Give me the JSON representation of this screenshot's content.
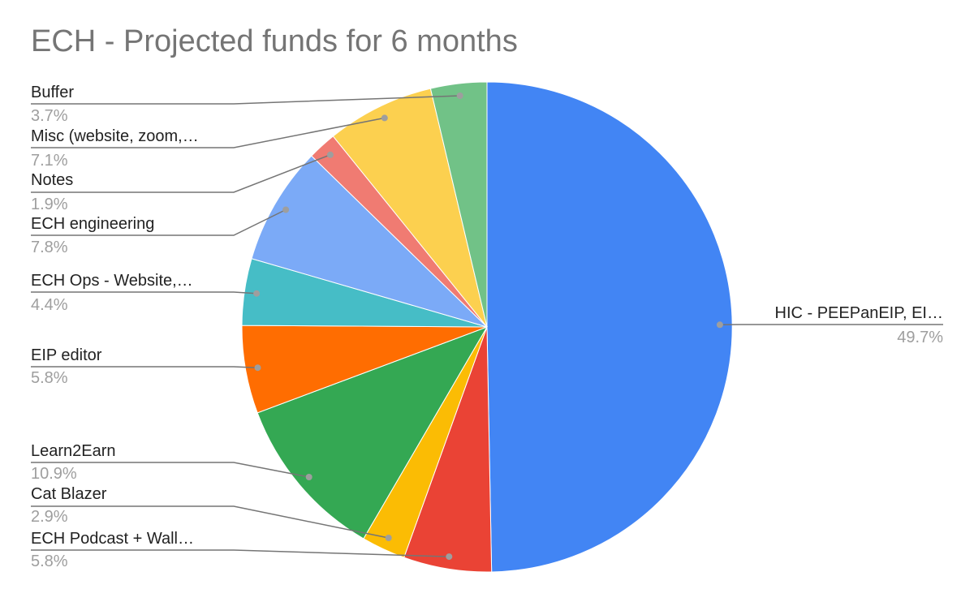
{
  "chart_data": {
    "type": "pie",
    "title": "ECH - Projected funds for 6 months",
    "legend": "labels-outside",
    "slices": [
      {
        "label": "HIC - PEEPanEIP, EI…",
        "percent_label": "49.7%",
        "value": 49.7,
        "color": "#4285F4"
      },
      {
        "label": "ECH Podcast + Wall…",
        "percent_label": "5.8%",
        "value": 5.8,
        "color": "#EA4335"
      },
      {
        "label": "Cat Blazer",
        "percent_label": "2.9%",
        "value": 2.9,
        "color": "#FBBC04"
      },
      {
        "label": "Learn2Earn",
        "percent_label": "10.9%",
        "value": 10.9,
        "color": "#34A853"
      },
      {
        "label": "EIP editor",
        "percent_label": "5.8%",
        "value": 5.8,
        "color": "#FF6D01"
      },
      {
        "label": "ECH Ops - Website,…",
        "percent_label": "4.4%",
        "value": 4.4,
        "color": "#46BDC6"
      },
      {
        "label": "ECH engineering",
        "percent_label": "7.8%",
        "value": 7.8,
        "color": "#7BAAF7"
      },
      {
        "label": "Notes",
        "percent_label": "1.9%",
        "value": 1.9,
        "color": "#F07B72"
      },
      {
        "label": "Misc (website, zoom,…",
        "percent_label": "7.1%",
        "value": 7.1,
        "color": "#FCD04F"
      },
      {
        "label": "Buffer",
        "percent_label": "3.7%",
        "value": 3.7,
        "color": "#71C287"
      }
    ]
  }
}
